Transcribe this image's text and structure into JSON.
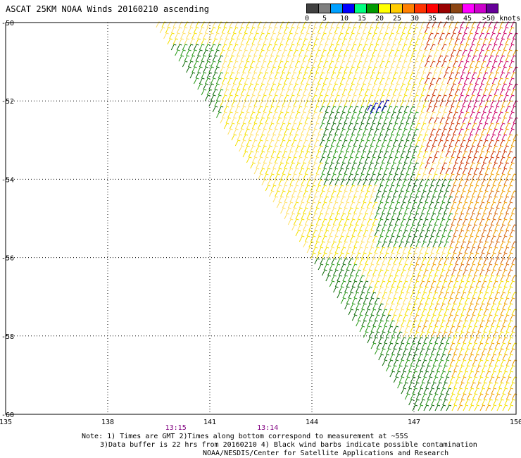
{
  "title": "ASCAT 25KM NOAA Winds 20160210 ascending",
  "legend": {
    "colors": [
      "#404040",
      "#7f7f7f",
      "#00a0ff",
      "#0000ff",
      "#00ff80",
      "#009900",
      "#ffff00",
      "#ffcc00",
      "#ff8000",
      "#ff3300",
      "#ff0000",
      "#990000",
      "#8b4513",
      "#ff00ff",
      "#cc00cc",
      "#660099"
    ],
    "labels": [
      "0",
      "5",
      "10",
      "15",
      "20",
      "25",
      "30",
      "35",
      "40",
      "45",
      ">50 knots"
    ]
  },
  "map": {
    "lon_ticks": [
      "135",
      "138",
      "141",
      "144",
      "147",
      "150"
    ],
    "lat_ticks": [
      "-50",
      "-52",
      "-54",
      "-56",
      "-58",
      "-60"
    ],
    "lon_range": [
      135,
      150
    ],
    "lat_range": [
      -50,
      -60
    ],
    "grid": "dotted",
    "times": [
      {
        "label": "13:15",
        "lon": 140.0,
        "color": "#800080"
      },
      {
        "label": "13:14",
        "lon": 142.7,
        "color": "#800080"
      }
    ]
  },
  "swath": {
    "edge_lon_top": 139.3,
    "edge_lon_bottom": 147.0,
    "barb_colors": {
      "yellow": "#f5e000",
      "lightyellow": "#ffe066",
      "orange": "#f0a000",
      "darkorange": "#d86a10",
      "red": "#cc3300",
      "magenta": "#cc0066",
      "green": "#2a9a1a",
      "darkgreen": "#0f6a0a",
      "blue": "#0000cc"
    }
  },
  "footer": {
    "line1": "Note: 1) Times are GMT 2)Times along bottom correspond to measurement at ~55S",
    "line2": "3)Data buffer is 22 hrs from 20160210 4) Black wind barbs indicate possible contamination",
    "line3": "NOAA/NESDIS/Center for Satellite Applications and Research"
  }
}
